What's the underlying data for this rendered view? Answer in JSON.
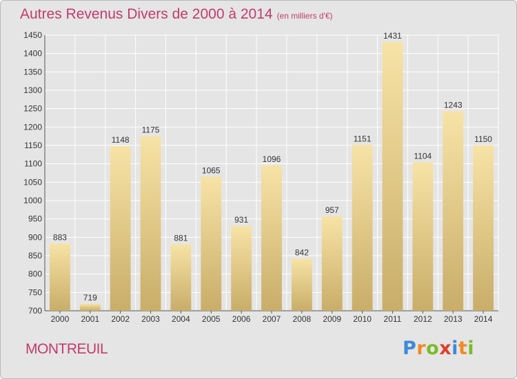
{
  "chart_data": {
    "type": "bar",
    "title": "Autres Revenus Divers de 2000 à 2014",
    "subtitle": "(en milliers d'€)",
    "categories": [
      "2000",
      "2001",
      "2002",
      "2003",
      "2004",
      "2005",
      "2006",
      "2007",
      "2008",
      "2009",
      "2010",
      "2011",
      "2012",
      "2013",
      "2014"
    ],
    "values": [
      883,
      719,
      1148,
      1175,
      881,
      1065,
      931,
      1096,
      842,
      957,
      1151,
      1431,
      1104,
      1243,
      1150
    ],
    "ylim": [
      700,
      1450
    ],
    "yticks": [
      700,
      750,
      800,
      850,
      900,
      950,
      1000,
      1050,
      1100,
      1150,
      1200,
      1250,
      1300,
      1350,
      1400,
      1450
    ],
    "grid": true,
    "xlabel": "",
    "ylabel": ""
  },
  "place": "MONTREUIL",
  "logo": {
    "letters": [
      "P",
      "r",
      "o",
      "x",
      "i",
      "t",
      "i"
    ],
    "colors": [
      "#3b8ad9",
      "#f08a24",
      "#7cbb2a",
      "#e23d2b",
      "#3b8ad9",
      "#f08a24",
      "#7cbb2a"
    ]
  },
  "colors": {
    "bar_light": "#f7e3a6",
    "bar_dark": "#c9ad69",
    "title": "#c23b6b",
    "background": "#e5e5e5"
  }
}
